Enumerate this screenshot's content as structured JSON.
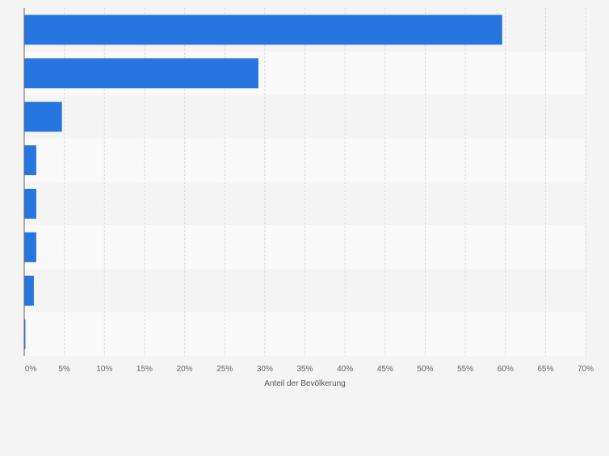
{
  "chart_data": {
    "type": "bar",
    "orientation": "horizontal",
    "categories": [
      "",
      "",
      "",
      "",
      "",
      "",
      "",
      ""
    ],
    "values": [
      59.6,
      29.2,
      4.7,
      1.5,
      1.5,
      1.5,
      1.2,
      0.15
    ],
    "xlabel": "Anteil der Bevölkerung",
    "ylabel": "",
    "xlim": [
      0,
      70
    ],
    "xticks": [
      0,
      5,
      10,
      15,
      20,
      25,
      30,
      35,
      40,
      45,
      50,
      55,
      60,
      65,
      70
    ],
    "tick_suffix": "%",
    "grid": true,
    "legend": "none",
    "colors": {
      "bar": "#2775de",
      "background": "#f4f4f4",
      "band_light": "#f9f9f9",
      "band_dark": "#f4f4f4",
      "grid": "#dcdcdc",
      "axis": "#666666",
      "tick_text": "#666666",
      "label_text": "#555555"
    }
  }
}
